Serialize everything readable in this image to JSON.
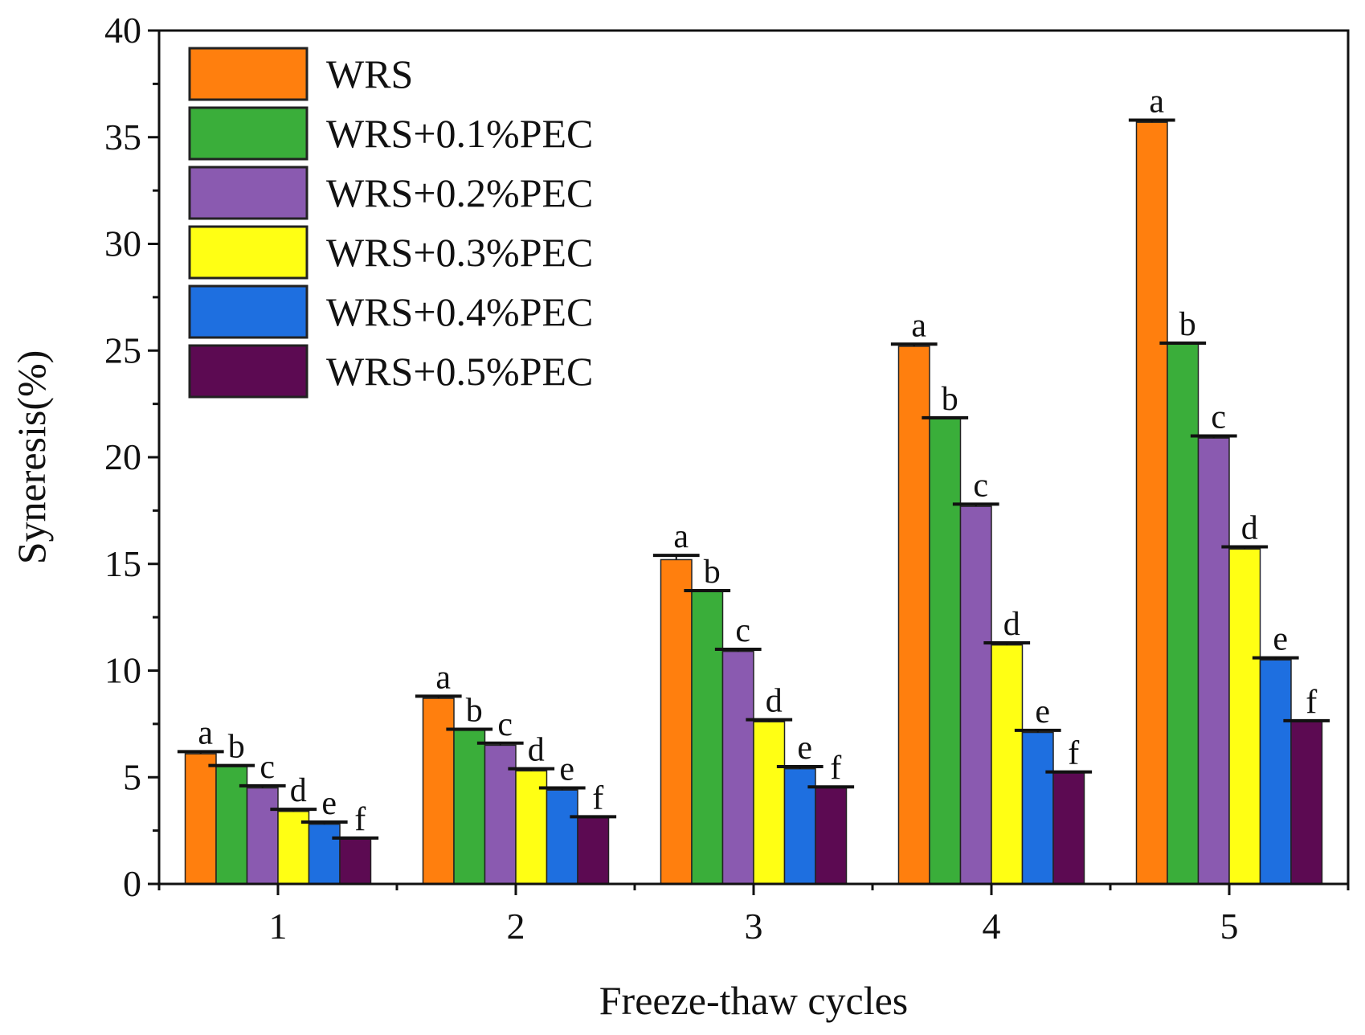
{
  "chart_data": {
    "type": "bar",
    "title": "",
    "xlabel": "Freeze-thaw cycles",
    "ylabel": "Syneresis(%)",
    "ylim": [
      0,
      40
    ],
    "yticks": [
      0,
      5,
      10,
      15,
      20,
      25,
      30,
      35,
      40
    ],
    "categories": [
      "1",
      "2",
      "3",
      "4",
      "5"
    ],
    "legend_position": "top-left",
    "grid": false,
    "series": [
      {
        "name": "WRS",
        "color": "#ff7f0e",
        "values": [
          6.1,
          8.7,
          15.2,
          25.2,
          35.7
        ],
        "errors": [
          0.1,
          0.1,
          0.2,
          0.1,
          0.1
        ],
        "letters": [
          "a",
          "a",
          "a",
          "a",
          "a"
        ]
      },
      {
        "name": "WRS+0.1%PEC",
        "color": "#3aae3a",
        "values": [
          5.5,
          7.2,
          13.7,
          21.8,
          25.3
        ],
        "errors": [
          0.05,
          0.05,
          0.05,
          0.05,
          0.05
        ],
        "letters": [
          "b",
          "b",
          "b",
          "b",
          "b"
        ]
      },
      {
        "name": "WRS+0.2%PEC",
        "color": "#8a5ab0",
        "values": [
          4.5,
          6.5,
          10.9,
          17.7,
          20.9
        ],
        "errors": [
          0.1,
          0.1,
          0.1,
          0.1,
          0.1
        ],
        "letters": [
          "c",
          "c",
          "c",
          "c",
          "c"
        ]
      },
      {
        "name": "WRS+0.3%PEC",
        "color": "#ffff14",
        "values": [
          3.4,
          5.3,
          7.6,
          11.2,
          15.7
        ],
        "errors": [
          0.1,
          0.1,
          0.1,
          0.1,
          0.1
        ],
        "letters": [
          "d",
          "d",
          "d",
          "d",
          "d"
        ]
      },
      {
        "name": "WRS+0.4%PEC",
        "color": "#1e6fe0",
        "values": [
          2.8,
          4.4,
          5.4,
          7.1,
          10.5
        ],
        "errors": [
          0.1,
          0.1,
          0.1,
          0.1,
          0.1
        ],
        "letters": [
          "e",
          "e",
          "e",
          "e",
          "e"
        ]
      },
      {
        "name": "WRS+0.5%PEC",
        "color": "#5c0a52",
        "values": [
          2.1,
          3.1,
          4.5,
          5.2,
          7.6
        ],
        "errors": [
          0.05,
          0.05,
          0.05,
          0.05,
          0.05
        ],
        "letters": [
          "f",
          "f",
          "f",
          "f",
          "f"
        ]
      }
    ]
  }
}
